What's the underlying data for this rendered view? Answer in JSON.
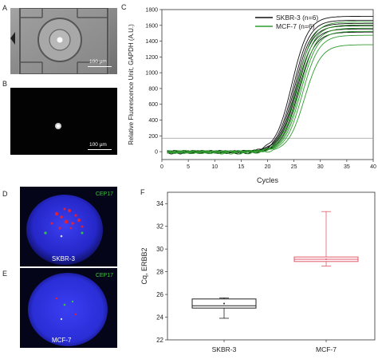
{
  "panels": {
    "A": {
      "label": "A",
      "scale_bar": "100 µm"
    },
    "B": {
      "label": "B",
      "scale_bar": "100 µm"
    },
    "C": {
      "label": "C"
    },
    "D": {
      "label": "D",
      "probe": "CEP17",
      "cell_line": "SKBR-3"
    },
    "E": {
      "label": "E",
      "probe": "CEP17",
      "cell_line": "MCF-7"
    },
    "F": {
      "label": "F"
    }
  },
  "colors": {
    "skbr3": "#111111",
    "mcf7": "#2e9a2e",
    "threshold": "#999999",
    "box_skbr3": "#222222",
    "box_mcf7": "#e05a6a",
    "nucleus": "#2a2fd6",
    "probe_green": "#39c639",
    "her2_red": "#e0203a"
  },
  "chart_data": [
    {
      "id": "C",
      "type": "line",
      "xlabel": "Cycles",
      "ylabel": "Relative Fluorescence Unit, GAPDH (A.U.)",
      "xlim": [
        0,
        40
      ],
      "ylim": [
        -100,
        1800
      ],
      "xticks": [
        0,
        5,
        10,
        15,
        20,
        25,
        30,
        35,
        40
      ],
      "yticks": [
        0,
        200,
        400,
        600,
        800,
        1000,
        1200,
        1400,
        1600,
        1800
      ],
      "threshold": 170,
      "legend_position": "top-right",
      "series": [
        {
          "name": "SKBR-3 (n=6)",
          "color_key": "skbr3",
          "curves": [
            {
              "midpoint": 24.6,
              "plateau": 1720
            },
            {
              "midpoint": 24.9,
              "plateau": 1670
            },
            {
              "midpoint": 25.1,
              "plateau": 1630
            },
            {
              "midpoint": 25.3,
              "plateau": 1600
            },
            {
              "midpoint": 25.5,
              "plateau": 1560
            },
            {
              "midpoint": 25.8,
              "plateau": 1520
            }
          ]
        },
        {
          "name": "MCF-7 (n=6)",
          "color_key": "mcf7",
          "curves": [
            {
              "midpoint": 25.5,
              "plateau": 1650
            },
            {
              "midpoint": 25.8,
              "plateau": 1610
            },
            {
              "midpoint": 26.1,
              "plateau": 1570
            },
            {
              "midpoint": 26.3,
              "plateau": 1530
            },
            {
              "midpoint": 26.6,
              "plateau": 1480
            },
            {
              "midpoint": 27.0,
              "plateau": 1360
            }
          ]
        }
      ]
    },
    {
      "id": "F",
      "type": "box",
      "ylabel": "Cq, ERBB2",
      "ylim": [
        22,
        35
      ],
      "yticks": [
        22,
        24,
        26,
        28,
        30,
        32,
        34
      ],
      "categories": [
        "SKBR-3",
        "MCF-7"
      ],
      "boxes": [
        {
          "name": "SKBR-3",
          "color_key": "box_skbr3",
          "min": 23.9,
          "q1": 24.8,
          "median": 25.0,
          "q3": 25.6,
          "max": 25.7
        },
        {
          "name": "MCF-7",
          "color_key": "box_mcf7",
          "min": 28.5,
          "q1": 28.9,
          "median": 29.1,
          "q3": 29.3,
          "max": 33.3
        }
      ]
    }
  ]
}
